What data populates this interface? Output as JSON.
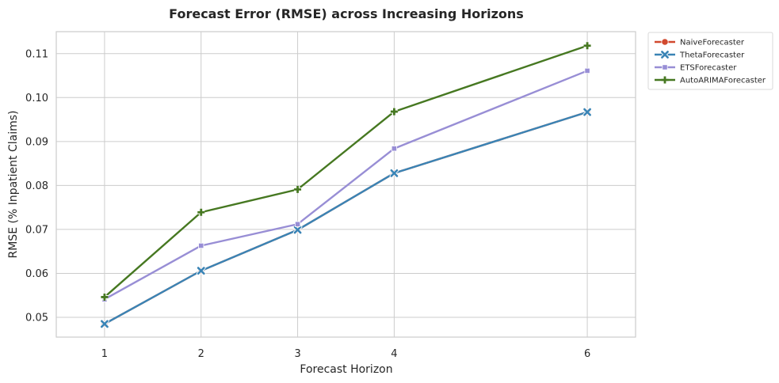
{
  "chart_data": {
    "type": "line",
    "title": "Forecast Error (RMSE) across Increasing Horizons",
    "xlabel": "Forecast Horizon",
    "ylabel": "RMSE (% Inpatient Claims)",
    "x": [
      1,
      2,
      3,
      4,
      6
    ],
    "xticks": [
      "1",
      "2",
      "3",
      "4",
      "6"
    ],
    "xlim": [
      0.5,
      6.5
    ],
    "yticks": [
      "0.05",
      "0.06",
      "0.07",
      "0.08",
      "0.09",
      "0.10",
      "0.11"
    ],
    "ylim": [
      0.0455,
      0.115
    ],
    "grid": true,
    "legend_position": "outside top-right",
    "series": [
      {
        "name": "NaiveForecaster",
        "color": "#d1492e",
        "marker": "circle",
        "values": [
          0.0485,
          0.0606,
          0.0699,
          0.0828,
          0.0967
        ]
      },
      {
        "name": "ThetaForecaster",
        "color": "#3a84b5",
        "marker": "x",
        "values": [
          0.0485,
          0.0606,
          0.0699,
          0.0828,
          0.0967
        ]
      },
      {
        "name": "ETSForecaster",
        "color": "#988ed5",
        "marker": "square",
        "values": [
          0.0541,
          0.0663,
          0.0712,
          0.0884,
          0.1061
        ]
      },
      {
        "name": "AutoARIMAForecaster",
        "color": "#467821",
        "marker": "plus",
        "values": [
          0.0546,
          0.0739,
          0.0791,
          0.0968,
          0.1118
        ]
      }
    ]
  }
}
